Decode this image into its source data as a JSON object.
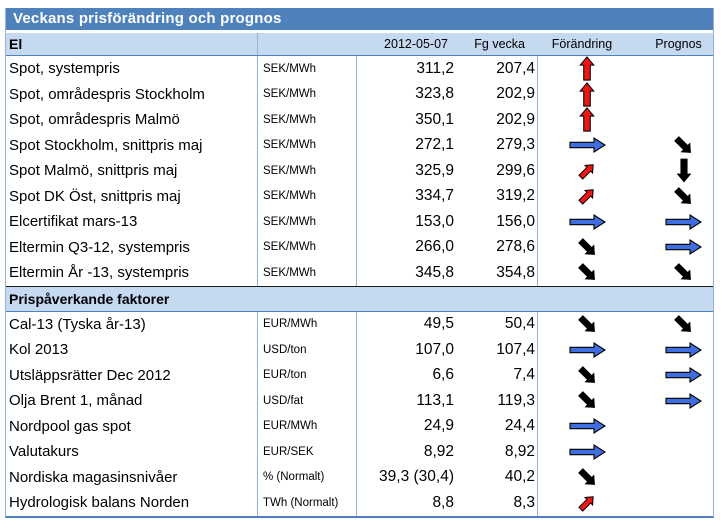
{
  "title": "Veckans prisförändring och prognos",
  "columns": {
    "date": "2012-05-07",
    "prev": "Fg vecka",
    "change": "Förändring",
    "forecast": "Prognos"
  },
  "colors": {
    "accent": "#4f81bd",
    "section_bg": "#c5d9f1",
    "border_light": "#95b3d7",
    "arrow_red": "#ee1515",
    "arrow_blue": "#3f6ede",
    "arrow_black": "#000000"
  },
  "arrow_legend": {
    "red-up": "strong increase",
    "red-diag-up": "increase",
    "blue-right": "unchanged / sideways",
    "black-diag-down": "decrease",
    "black-down": "strong decrease"
  },
  "sections": [
    {
      "label": "El",
      "rows": [
        {
          "name": "Spot, systempris",
          "unit": "SEK/MWh",
          "current": "311,2",
          "prev": "207,4",
          "change": "red-up",
          "forecast": null
        },
        {
          "name": "Spot, områdespris Stockholm",
          "unit": "SEK/MWh",
          "current": "323,8",
          "prev": "202,9",
          "change": "red-up",
          "forecast": null
        },
        {
          "name": "Spot, områdespris Malmö",
          "unit": "SEK/MWh",
          "current": "350,1",
          "prev": "202,9",
          "change": "red-up",
          "forecast": null
        },
        {
          "name": "Spot Stockholm, snittpris maj",
          "unit": "SEK/MWh",
          "current": "272,1",
          "prev": "279,3",
          "change": "blue-right",
          "forecast": "black-diag-down"
        },
        {
          "name": "Spot Malmö, snittpris maj",
          "unit": "SEK/MWh",
          "current": "325,9",
          "prev": "299,6",
          "change": "red-diag-up",
          "forecast": "black-down"
        },
        {
          "name": "Spot DK Öst, snittpris maj",
          "unit": "SEK/MWh",
          "current": "334,7",
          "prev": "319,2",
          "change": "red-diag-up",
          "forecast": "black-diag-down"
        },
        {
          "name": "Elcertifikat mars-13",
          "unit": "SEK/MWh",
          "current": "153,0",
          "prev": "156,0",
          "change": "blue-right",
          "forecast": "blue-right"
        },
        {
          "name": "Eltermin Q3-12, systempris",
          "unit": "SEK/MWh",
          "current": "266,0",
          "prev": "278,6",
          "change": "black-diag-down",
          "forecast": "blue-right"
        },
        {
          "name": "Eltermin År -13, systempris",
          "unit": "SEK/MWh",
          "current": "345,8",
          "prev": "354,8",
          "change": "black-diag-down",
          "forecast": "black-diag-down"
        }
      ]
    },
    {
      "label": "Prispåverkande faktorer",
      "rows": [
        {
          "name": "Cal-13 (Tyska år-13)",
          "unit": "EUR/MWh",
          "current": "49,5",
          "prev": "50,4",
          "change": "black-diag-down",
          "forecast": "black-diag-down"
        },
        {
          "name": "Kol 2013",
          "unit": "USD/ton",
          "current": "107,0",
          "prev": "107,4",
          "change": "blue-right",
          "forecast": "blue-right"
        },
        {
          "name": "Utsläppsrätter Dec 2012",
          "unit": "EUR/ton",
          "current": "6,6",
          "prev": "7,4",
          "change": "black-diag-down",
          "forecast": "blue-right"
        },
        {
          "name": "Olja Brent 1, månad",
          "unit": "USD/fat",
          "current": "113,1",
          "prev": "119,3",
          "change": "black-diag-down",
          "forecast": "blue-right"
        },
        {
          "name": "Nordpool gas spot",
          "unit": "EUR/MWh",
          "current": "24,9",
          "prev": "24,4",
          "change": "blue-right",
          "forecast": null
        },
        {
          "name": "Valutakurs",
          "unit": "EUR/SEK",
          "current": "8,92",
          "prev": "8,92",
          "change": "blue-right",
          "forecast": null
        },
        {
          "name": "Nordiska magasinsnivåer",
          "unit": "% (Normalt)",
          "current": "39,3 (30,4)",
          "prev": "40,2",
          "change": "black-diag-down",
          "forecast": null
        },
        {
          "name": "Hydrologisk balans Norden",
          "unit": "TWh (Normalt)",
          "current": "8,8",
          "prev": "8,3",
          "change": "red-diag-up",
          "forecast": null
        }
      ]
    }
  ]
}
